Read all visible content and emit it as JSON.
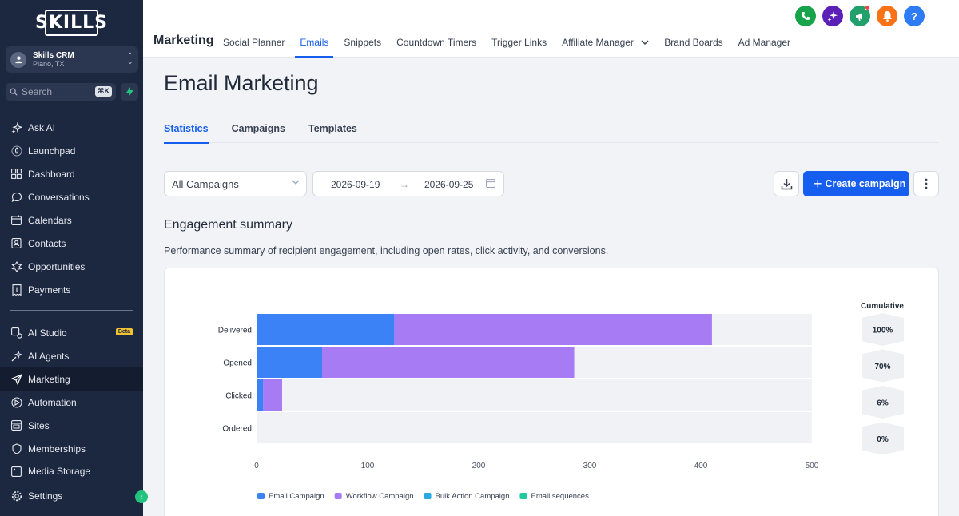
{
  "sidebar": {
    "logo": "SKILLS",
    "account": {
      "name": "Skills CRM",
      "location": "Plano, TX"
    },
    "search": {
      "placeholder": "Search",
      "shortcut": "⌘K"
    },
    "primary": [
      {
        "label": "Ask AI",
        "icon": "sparkle-icon"
      },
      {
        "label": "Launchpad",
        "icon": "rocket-icon"
      },
      {
        "label": "Dashboard",
        "icon": "grid-icon"
      },
      {
        "label": "Conversations",
        "icon": "chat-icon"
      },
      {
        "label": "Calendars",
        "icon": "calendar-icon"
      },
      {
        "label": "Contacts",
        "icon": "contacts-icon"
      },
      {
        "label": "Opportunities",
        "icon": "opportunities-icon"
      },
      {
        "label": "Payments",
        "icon": "payments-icon"
      }
    ],
    "secondary": [
      {
        "label": "AI Studio",
        "icon": "ai-studio-icon",
        "badge": "Beta"
      },
      {
        "label": "AI Agents",
        "icon": "ai-agents-icon"
      },
      {
        "label": "Marketing",
        "icon": "send-icon",
        "active": true
      },
      {
        "label": "Automation",
        "icon": "automation-icon"
      },
      {
        "label": "Sites",
        "icon": "sites-icon"
      },
      {
        "label": "Memberships",
        "icon": "memberships-icon"
      },
      {
        "label": "Media Storage",
        "icon": "media-icon"
      }
    ],
    "settings": "Settings"
  },
  "topbar": {
    "title": "Marketing",
    "tabs": [
      "Social Planner",
      "Emails",
      "Snippets",
      "Countdown Timers",
      "Trigger Links",
      "Affiliate Manager",
      "Brand Boards",
      "Ad Manager"
    ],
    "active_tab": "Emails",
    "colors": {
      "phone": "#16a34a",
      "ai": "#5b21b6",
      "announce": "#22a06b",
      "bell": "#f97316",
      "help": "#2e7bf6"
    }
  },
  "main": {
    "title": "Email Marketing",
    "subtabs": [
      "Statistics",
      "Campaigns",
      "Templates"
    ],
    "active_subtab": "Statistics",
    "filter": {
      "selected": "All Campaigns"
    },
    "date_range": {
      "start": "2026-09-19",
      "end": "2026-09-25"
    },
    "create_label": "Create campaign",
    "section_title": "Engagement summary",
    "section_desc": "Performance summary of recipient engagement, including open rates, click activity, and conversions."
  },
  "chart_data": {
    "type": "bar",
    "orientation": "horizontal",
    "stacked": true,
    "categories": [
      "Delivered",
      "Opened",
      "Clicked",
      "Ordered"
    ],
    "series": [
      {
        "name": "Email Campaign",
        "color": "#3b82f6",
        "values": [
          124,
          59,
          6,
          0
        ]
      },
      {
        "name": "Workflow Campaign",
        "color": "#a77bf3",
        "values": [
          286,
          227,
          17,
          0
        ]
      },
      {
        "name": "Bulk Action Campaign",
        "color": "#2aa8e6",
        "values": [
          0,
          0,
          0,
          0
        ]
      },
      {
        "name": "Email sequences",
        "color": "#1ec9a0",
        "values": [
          0,
          0,
          0,
          0
        ]
      }
    ],
    "xlim": [
      0,
      500
    ],
    "xticks": [
      0,
      100,
      200,
      300,
      400,
      500
    ],
    "cumulative_label": "Cumulative",
    "cumulative": [
      "100%",
      "70%",
      "6%",
      "0%"
    ],
    "legend_position": "bottom"
  }
}
